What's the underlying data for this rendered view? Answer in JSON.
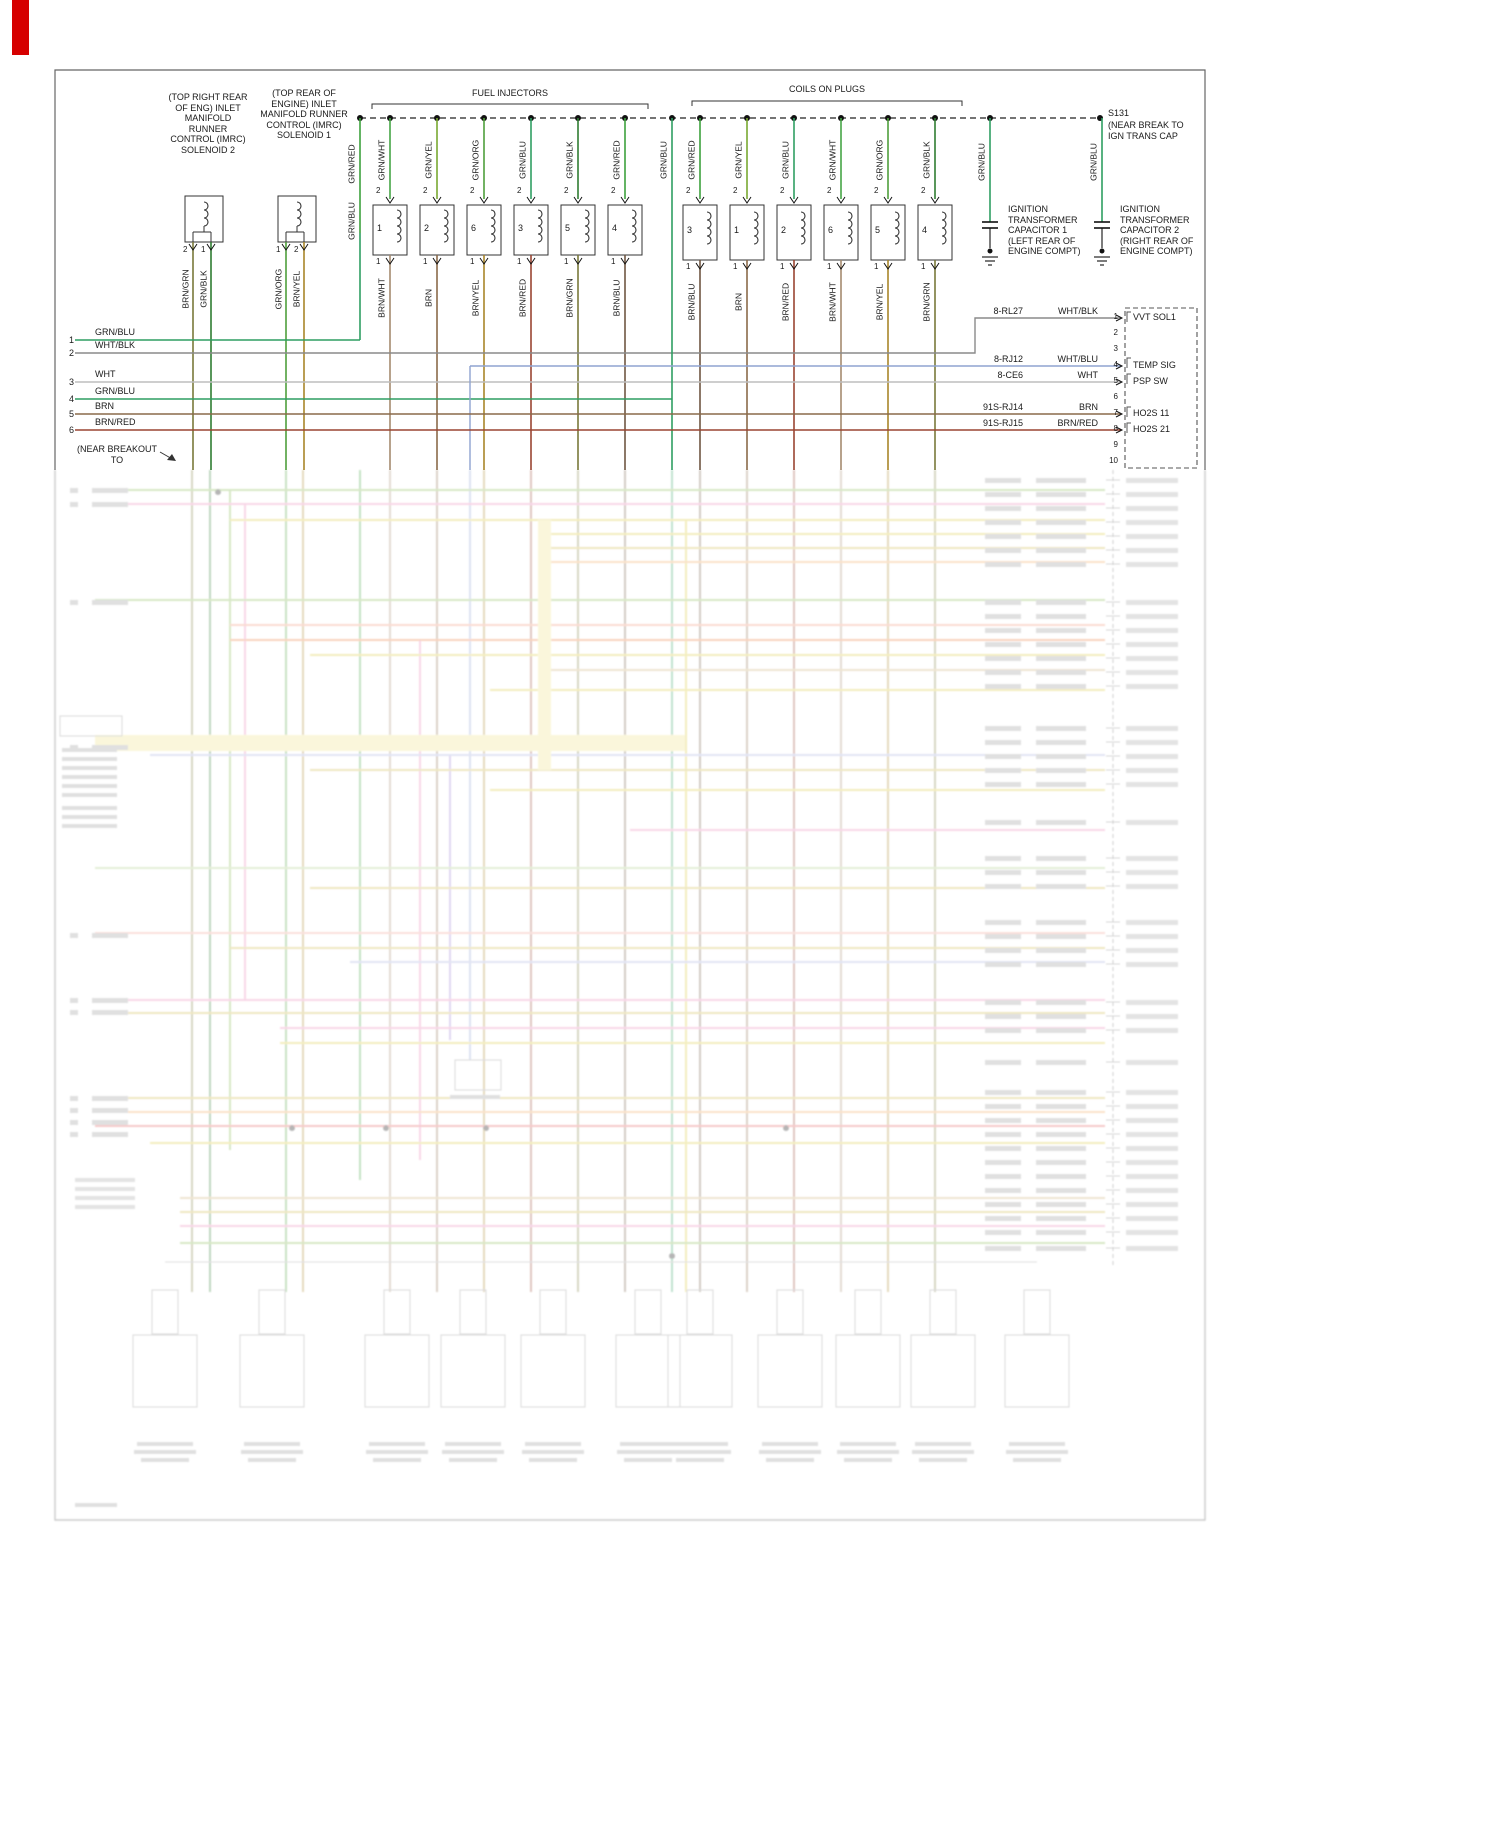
{
  "labels": {
    "imrc2": "(TOP RIGHT REAR OF ENG) INLET MANIFOLD RUNNER CONTROL (IMRC) SOLENOID 2",
    "imrc1": "(TOP REAR OF ENGINE) INLET MANIFOLD RUNNER CONTROL (IMRC) SOLENOID 1",
    "fuel_injectors": "FUEL INJECTORS",
    "coils_on_plugs": "COILS ON PLUGS",
    "s131": "S131",
    "s131_note": "(NEAR BREAK TO IGN TRANS CAP",
    "cap1": "IGNITION TRANSFORMER CAPACITOR 1 (LEFT REAR OF ENGINE COMPT)",
    "cap2": "IGNITION TRANSFORMER CAPACITOR 2 (RIGHT REAR OF ENGINE COMPT)",
    "near_breakout": "(NEAR BREAKOUT TO"
  },
  "feed": {
    "grn_red": "GRN/RED",
    "grn_blu": "GRN/BLU",
    "mid": "GRN/BLU",
    "cap1_wire": "GRN/BLU",
    "cap2_wire": "GRN/BLU"
  },
  "injectors": [
    {
      "num": "1",
      "pin_top": "2",
      "top": "GRN/WHT",
      "pin_bot": "1",
      "bot": "BRN/WHT"
    },
    {
      "num": "2",
      "pin_top": "2",
      "top": "GRN/YEL",
      "pin_bot": "1",
      "bot": "BRN"
    },
    {
      "num": "6",
      "pin_top": "2",
      "top": "GRN/ORG",
      "pin_bot": "1",
      "bot": "BRN/YEL"
    },
    {
      "num": "3",
      "pin_top": "2",
      "top": "GRN/BLU",
      "pin_bot": "1",
      "bot": "BRN/RED"
    },
    {
      "num": "5",
      "pin_top": "2",
      "top": "GRN/BLK",
      "pin_bot": "1",
      "bot": "BRN/GRN"
    },
    {
      "num": "4",
      "pin_top": "2",
      "top": "GRN/RED",
      "pin_bot": "1",
      "bot": "BRN/BLU"
    }
  ],
  "coils": [
    {
      "num": "3",
      "pin_top": "2",
      "top": "GRN/RED",
      "pin_bot": "1",
      "bot": "BRN/BLU"
    },
    {
      "num": "1",
      "pin_top": "2",
      "top": "GRN/YEL",
      "pin_bot": "1",
      "bot": "BRN"
    },
    {
      "num": "2",
      "pin_top": "2",
      "top": "GRN/BLU",
      "pin_bot": "1",
      "bot": "BRN/RED"
    },
    {
      "num": "6",
      "pin_top": "2",
      "top": "GRN/WHT",
      "pin_bot": "1",
      "bot": "BRN/WHT"
    },
    {
      "num": "5",
      "pin_top": "2",
      "top": "GRN/ORG",
      "pin_bot": "1",
      "bot": "BRN/YEL"
    },
    {
      "num": "4",
      "pin_top": "2",
      "top": "GRN/BLK",
      "pin_bot": "1",
      "bot": "BRN/GRN"
    }
  ],
  "imrc2_conn": {
    "pin_l": "2",
    "pin_r": "1",
    "wire_l": "BRN/GRN",
    "wire_r": "GRN/BLK"
  },
  "imrc1_conn": {
    "pin_l": "1",
    "pin_r": "2",
    "wire_l": "GRN/ORG",
    "wire_r": "BRN/YEL"
  },
  "left_rows": [
    {
      "num": "1",
      "label": "GRN/BLU"
    },
    {
      "num": "2",
      "label": "WHT/BLK"
    },
    {
      "num": "3",
      "label": "WHT"
    },
    {
      "num": "4",
      "label": "GRN/BLU"
    },
    {
      "num": "5",
      "label": "BRN"
    },
    {
      "num": "6",
      "label": "BRN/RED"
    }
  ],
  "pcm": {
    "pins": [
      "1",
      "2",
      "3",
      "4",
      "5",
      "6",
      "7",
      "8",
      "9",
      "10"
    ],
    "wire_rows": [
      {
        "code": "8-RL27",
        "color": "WHT/BLK"
      },
      {
        "code": "8-RJ12",
        "color": "WHT/BLU"
      },
      {
        "code": "8-CE6",
        "color": "WHT"
      },
      {
        "code": "91S-RJ14",
        "color": "BRN"
      },
      {
        "code": "91S-RJ15",
        "color": "BRN/RED"
      }
    ],
    "labels": [
      "VVT SOL1",
      "TEMP SIG",
      "PSP SW",
      "HO2S 11",
      "HO2S 21"
    ]
  },
  "colors": {
    "margin_bar": "#d60000",
    "wire_green": "#2f9e62",
    "wire_brown": "#8a6a4a"
  }
}
